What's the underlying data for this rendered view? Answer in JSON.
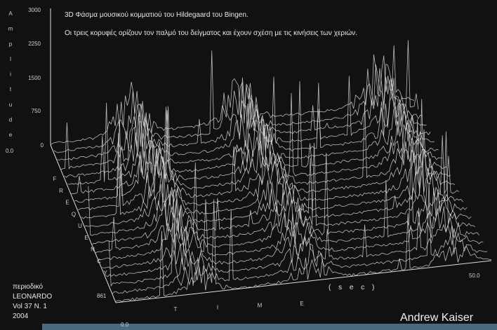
{
  "title_lines": [
    "3D Φάσμα μουσικού κομματιού του Hildegaard του Bingen.",
    "Οι τρεις κορυφές ορίζουν τον παλμό του δείγματος και έχουν σχέση με τις κινήσεις των χεριών."
  ],
  "amplitude_axis": {
    "letters": [
      "A",
      "m",
      "p",
      "l",
      "i",
      "t",
      "u",
      "d",
      "e"
    ],
    "ticks": [
      "3000",
      "2250",
      "1500",
      "750",
      "0"
    ],
    "origin": "0.0"
  },
  "frequency_axis": {
    "letters": [
      "F",
      "R",
      "E",
      "Q",
      "U",
      "E",
      "N",
      "C",
      "Y"
    ],
    "end": "861",
    "origin": "0.0"
  },
  "time_axis": {
    "letters": [
      "T",
      "I",
      "M",
      "E"
    ],
    "unit": "( s e c )",
    "end": "50.0"
  },
  "source": [
    "περιοδικό",
    "LEONARDO",
    "Vol 37 N. 1",
    "2004"
  ],
  "author": "Andrew Kaiser"
}
